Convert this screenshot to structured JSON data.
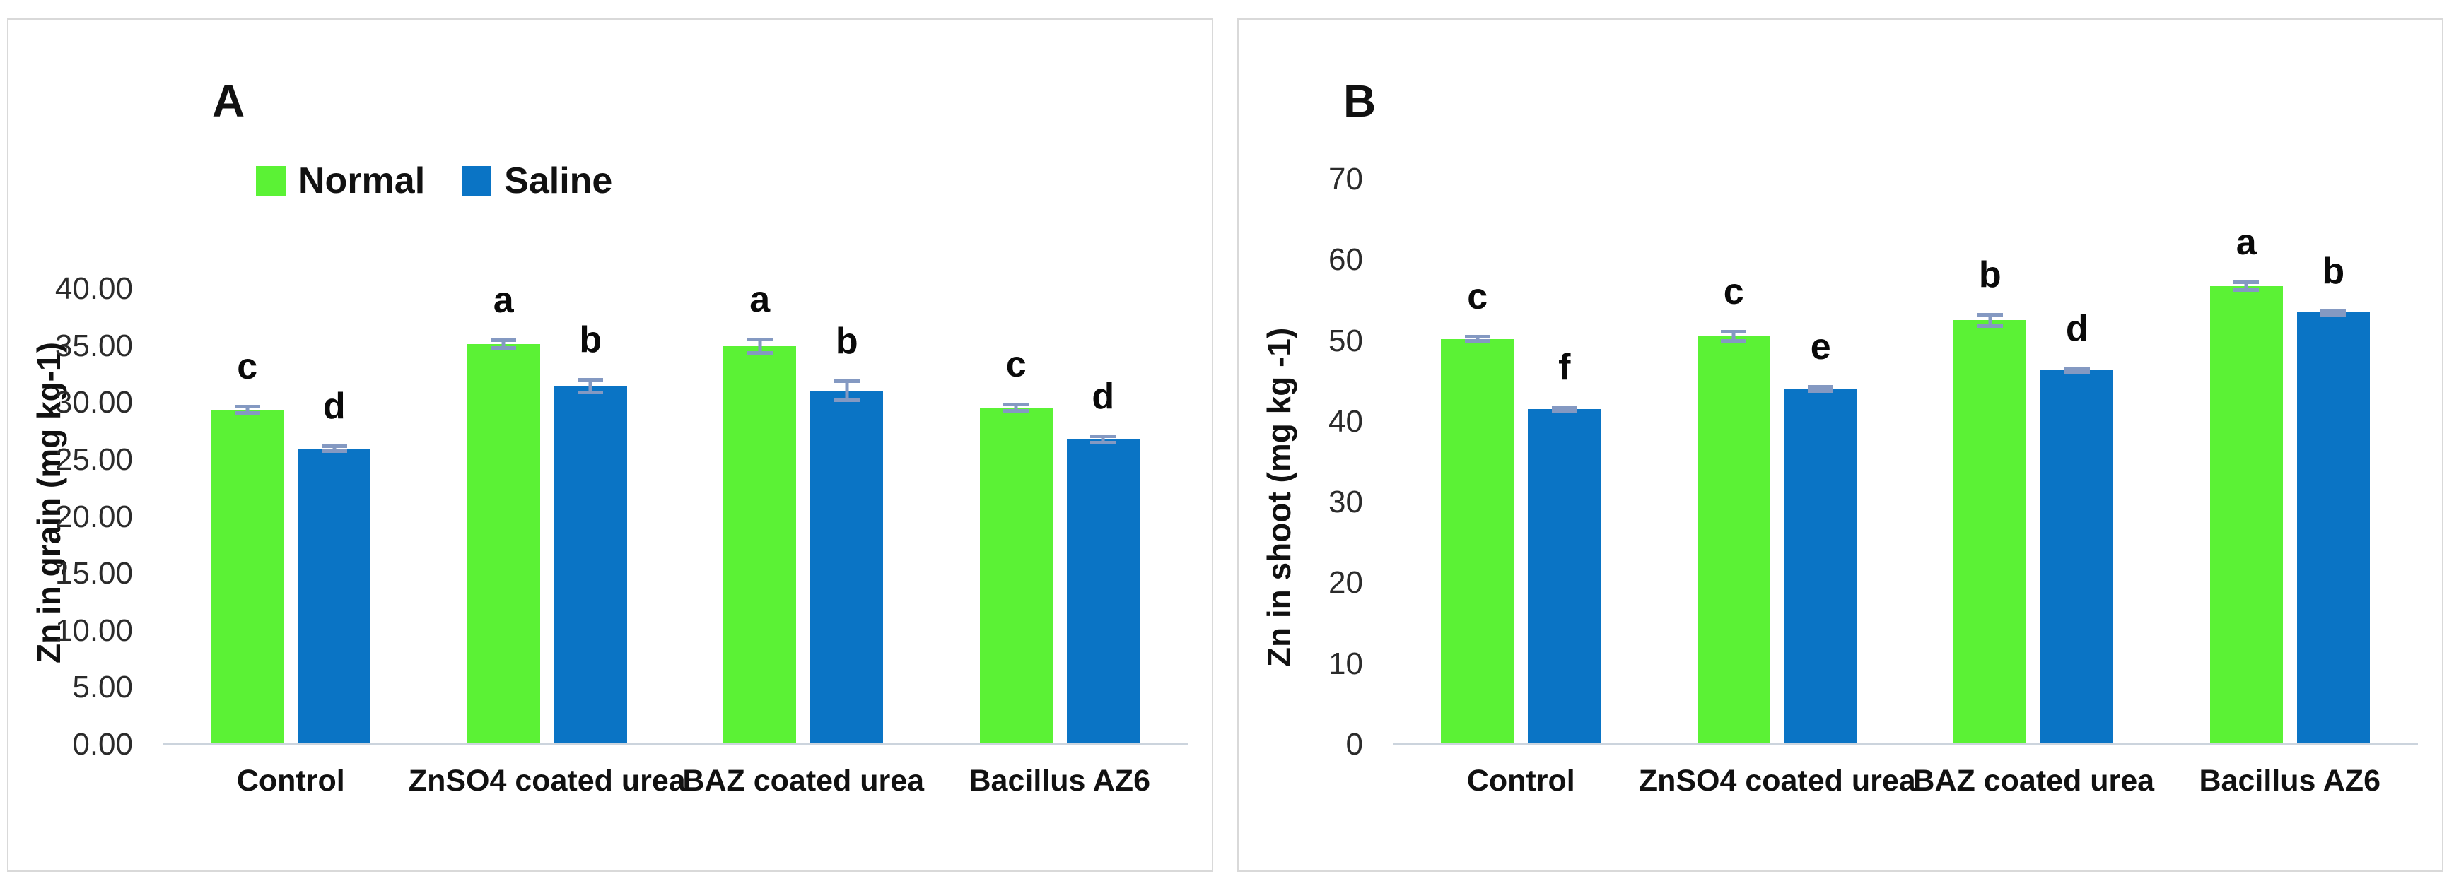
{
  "chart_data": [
    {
      "type": "bar",
      "panel_label": "A",
      "ylabel": "Zn in grain (mg kg-1)",
      "ylim": [
        0,
        40
      ],
      "ytick_step": 5,
      "yticks": [
        {
          "label": "0.00",
          "value": 0
        },
        {
          "label": "5.00",
          "value": 5
        },
        {
          "label": "10.00",
          "value": 10
        },
        {
          "label": "15.00",
          "value": 15
        },
        {
          "label": "20.00",
          "value": 20
        },
        {
          "label": "25.00",
          "value": 25
        },
        {
          "label": "30.00",
          "value": 30
        },
        {
          "label": "35.00",
          "value": 35
        },
        {
          "label": "40.00",
          "value": 40
        }
      ],
      "categories": [
        "Control",
        "ZnSO4 coated urea",
        "BAZ coated urea",
        "Bacillus AZ6"
      ],
      "legend_position": "top",
      "grid": false,
      "error_bar_color": "#8499c2",
      "series": [
        {
          "name": "Normal",
          "color": "#5bf235",
          "values": [
            29.2,
            35.0,
            34.8,
            29.4
          ],
          "errors": [
            0.45,
            0.5,
            0.75,
            0.45
          ],
          "letters": [
            "c",
            "a",
            "a",
            "c"
          ]
        },
        {
          "name": "Saline",
          "color": "#0a74c5",
          "values": [
            25.8,
            31.3,
            30.9,
            26.6
          ],
          "errors": [
            0.4,
            0.7,
            1.0,
            0.45
          ],
          "letters": [
            "d",
            "b",
            "b",
            "d"
          ]
        }
      ]
    },
    {
      "type": "bar",
      "panel_label": "B",
      "ylabel": "Zn in shoot (mg kg -1)",
      "ylim": [
        0,
        70
      ],
      "ytick_step": 10,
      "yticks": [
        {
          "label": "0",
          "value": 0
        },
        {
          "label": "10",
          "value": 10
        },
        {
          "label": "20",
          "value": 20
        },
        {
          "label": "30",
          "value": 30
        },
        {
          "label": "40",
          "value": 40
        },
        {
          "label": "50",
          "value": 50
        },
        {
          "label": "60",
          "value": 60
        },
        {
          "label": "70",
          "value": 70
        }
      ],
      "categories": [
        "Control",
        "ZnSO4 coated urea",
        "BAZ coated urea",
        "Bacillus AZ6"
      ],
      "legend_position": "none",
      "grid": false,
      "error_bar_color": "#8499c2",
      "series": [
        {
          "name": "Normal",
          "color": "#5bf235",
          "values": [
            50.0,
            50.3,
            52.3,
            56.5
          ],
          "errors": [
            0.5,
            0.8,
            0.9,
            0.7
          ],
          "letters": [
            "c",
            "c",
            "b",
            "a"
          ]
        },
        {
          "name": "Saline",
          "color": "#0a74c5",
          "values": [
            41.3,
            43.8,
            46.2,
            53.4
          ],
          "errors": [
            0.4,
            0.5,
            0.35,
            0.2
          ],
          "letters": [
            "f",
            "e",
            "d",
            "b"
          ]
        }
      ]
    }
  ]
}
